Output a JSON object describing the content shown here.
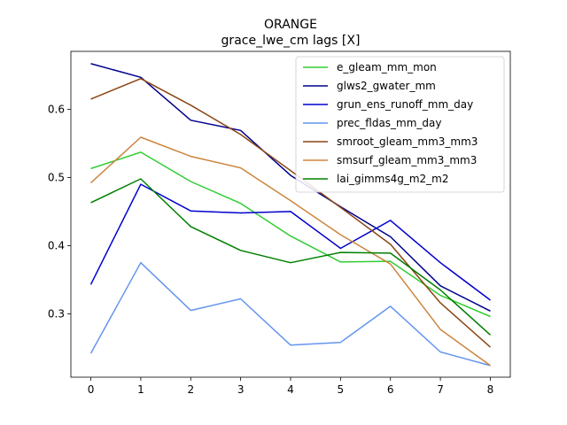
{
  "chart_data": {
    "type": "line",
    "title": "ORANGE",
    "subtitle": "grace_lwe_cm lags [X]",
    "xlabel": "",
    "ylabel": "",
    "x": [
      0,
      1,
      2,
      3,
      4,
      5,
      6,
      7,
      8
    ],
    "xlim": [
      -0.4,
      8.4
    ],
    "ylim": [
      0.207,
      0.685
    ],
    "xticks": [
      0,
      1,
      2,
      3,
      4,
      5,
      6,
      7,
      8
    ],
    "yticks": [
      0.3,
      0.4,
      0.5,
      0.6
    ],
    "ytick_labels": [
      "0.3",
      "0.4",
      "0.5",
      "0.6"
    ],
    "grid": false,
    "legend_position": "top-right",
    "series": [
      {
        "name": "e_gleam_mm_mon",
        "color": "#32cd32",
        "values": [
          0.513,
          0.537,
          0.494,
          0.462,
          0.414,
          0.376,
          0.377,
          0.327,
          0.296
        ]
      },
      {
        "name": "glws2_gwater_mm",
        "color": "#00008b",
        "values": [
          0.667,
          0.647,
          0.584,
          0.569,
          0.503,
          0.457,
          0.413,
          0.341,
          0.304
        ]
      },
      {
        "name": "grun_ens_runoff_mm_day",
        "color": "#0000cd",
        "values": [
          0.343,
          0.49,
          0.451,
          0.448,
          0.45,
          0.396,
          0.437,
          0.375,
          0.32
        ]
      },
      {
        "name": "prec_fldas_mm_day",
        "color": "#6495ed",
        "values": [
          0.242,
          0.375,
          0.305,
          0.322,
          0.254,
          0.258,
          0.311,
          0.244,
          0.224
        ]
      },
      {
        "name": "smroot_gleam_mm3_mm3",
        "color": "#8b4513",
        "values": [
          0.615,
          0.645,
          0.606,
          0.563,
          0.51,
          0.456,
          0.402,
          0.316,
          0.251
        ]
      },
      {
        "name": "smsurf_gleam_mm3_mm3",
        "color": "#cd853f",
        "values": [
          0.492,
          0.559,
          0.531,
          0.514,
          0.466,
          0.416,
          0.373,
          0.277,
          0.224
        ]
      },
      {
        "name": "lai_gimms4g_m2_m2",
        "color": "#008000",
        "values": [
          0.463,
          0.498,
          0.428,
          0.393,
          0.375,
          0.39,
          0.389,
          0.335,
          0.269
        ]
      }
    ]
  }
}
